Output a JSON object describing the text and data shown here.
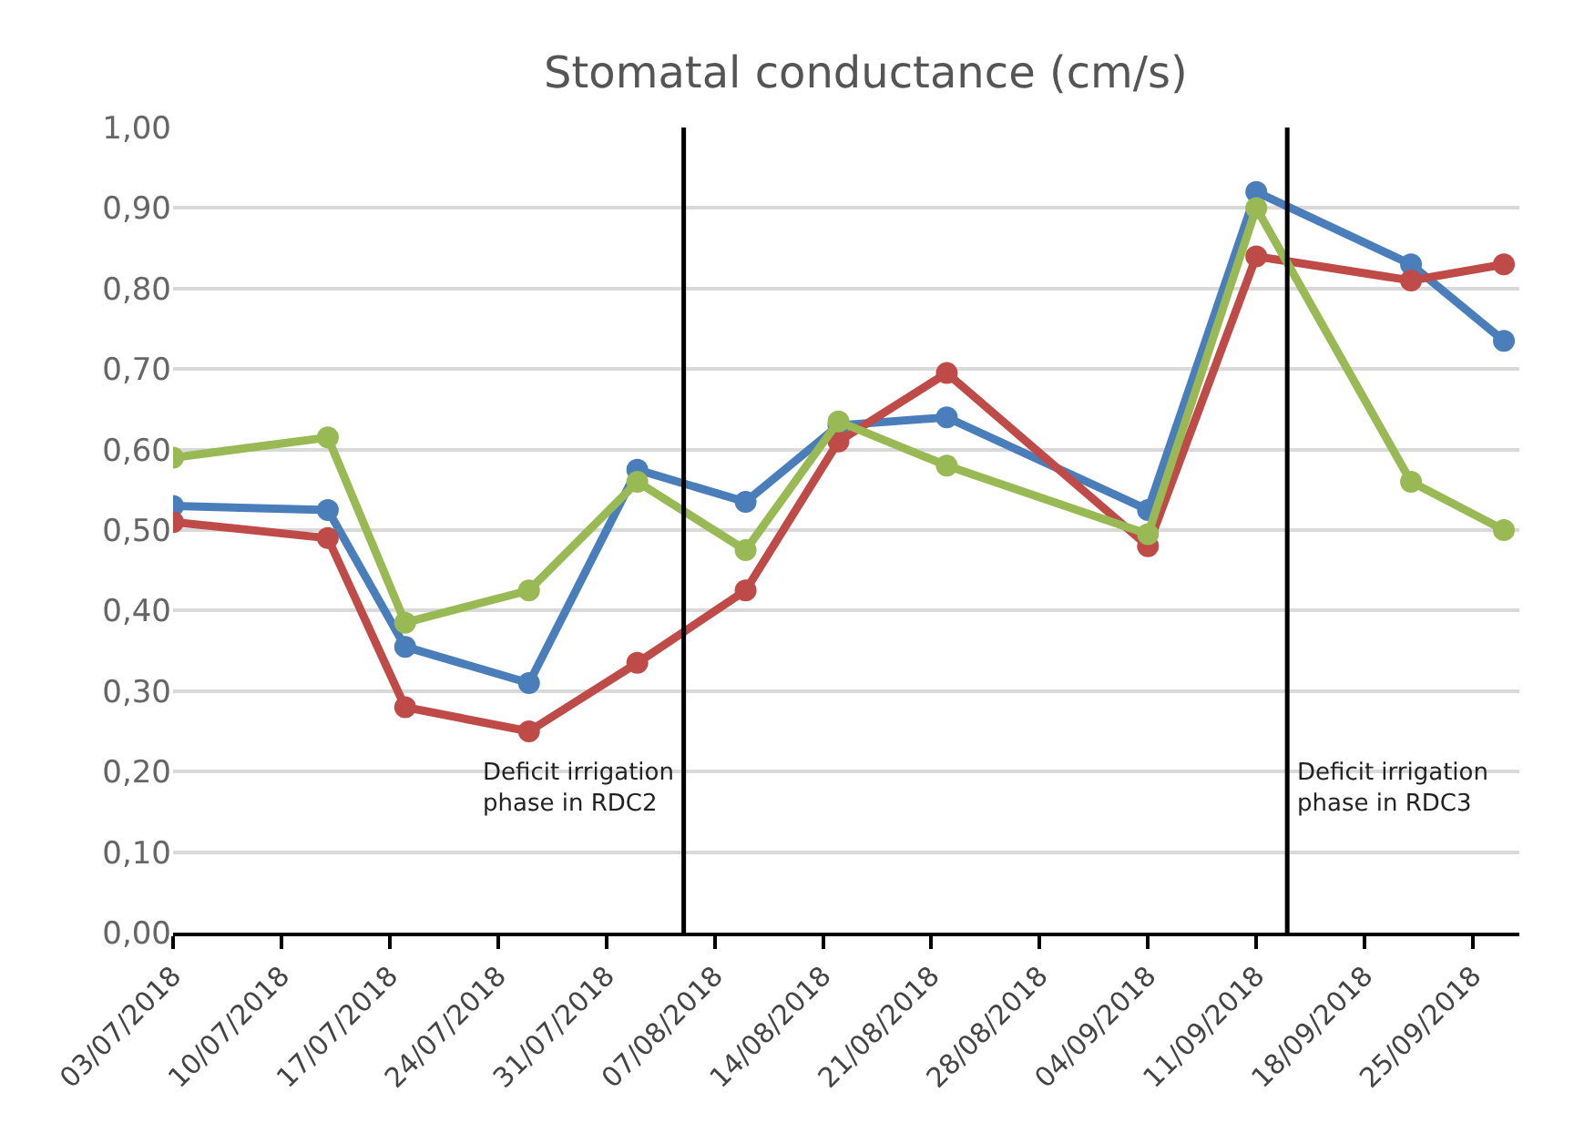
{
  "chart_data": {
    "type": "line",
    "title": "Stomatal conductance (cm/s)",
    "x": [
      "2018-07-03",
      "2018-07-13",
      "2018-07-18",
      "2018-07-26",
      "2018-08-02",
      "2018-08-09",
      "2018-08-15",
      "2018-08-22",
      "2018-09-04",
      "2018-09-11",
      "2018-09-21",
      "2018-09-27"
    ],
    "series": [
      {
        "color": "#4a7ebb",
        "values": [
          0.53,
          0.525,
          0.355,
          0.31,
          0.575,
          0.535,
          0.63,
          0.64,
          0.525,
          0.92,
          0.83,
          0.735
        ]
      },
      {
        "color": "#be4b48",
        "values": [
          0.51,
          0.49,
          0.28,
          0.25,
          0.335,
          0.425,
          0.61,
          0.695,
          0.48,
          0.84,
          0.81,
          0.83
        ]
      },
      {
        "color": "#98b954",
        "values": [
          0.59,
          0.615,
          0.385,
          0.425,
          0.56,
          0.475,
          0.635,
          0.58,
          0.495,
          0.9,
          0.56,
          0.5
        ]
      }
    ],
    "xlim": [
      "2018-07-03",
      "2018-09-28"
    ],
    "xticks": [
      {
        "value": "2018-07-03",
        "label": "03/07/2018"
      },
      {
        "value": "2018-07-10",
        "label": "10/07/2018"
      },
      {
        "value": "2018-07-17",
        "label": "17/07/2018"
      },
      {
        "value": "2018-07-24",
        "label": "24/07/2018"
      },
      {
        "value": "2018-07-31",
        "label": "31/07/2018"
      },
      {
        "value": "2018-08-07",
        "label": "07/08/2018"
      },
      {
        "value": "2018-08-14",
        "label": "14/08/2018"
      },
      {
        "value": "2018-08-21",
        "label": "21/08/2018"
      },
      {
        "value": "2018-08-28",
        "label": "28/08/2018"
      },
      {
        "value": "2018-09-04",
        "label": "04/09/2018"
      },
      {
        "value": "2018-09-11",
        "label": "11/09/2018"
      },
      {
        "value": "2018-09-18",
        "label": "18/09/2018"
      },
      {
        "value": "2018-09-25",
        "label": "25/09/2018"
      }
    ],
    "ylim": [
      0,
      1
    ],
    "yticks": [
      {
        "value": 0,
        "label": "0,00"
      },
      {
        "value": 0.1,
        "label": "0,10"
      },
      {
        "value": 0.2,
        "label": "0,20"
      },
      {
        "value": 0.3,
        "label": "0,30"
      },
      {
        "value": 0.4,
        "label": "0,40"
      },
      {
        "value": 0.5,
        "label": "0,50"
      },
      {
        "value": 0.6,
        "label": "0,60"
      },
      {
        "value": 0.7,
        "label": "0,70"
      },
      {
        "value": 0.8,
        "label": "0,80"
      },
      {
        "value": 0.9,
        "label": "0,90"
      },
      {
        "value": 1,
        "label": "1,00"
      }
    ],
    "ref_lines": [
      {
        "axis": "x",
        "value": "2018-08-05",
        "color": "#000000",
        "label": "Deficit irrigation\nphase in RDC2"
      },
      {
        "axis": "x",
        "value": "2018-09-13",
        "color": "#000000",
        "label": "Deficit irrigation\nphase in RDC3"
      }
    ],
    "grid": "y",
    "marker": "circle",
    "line_style": "solid"
  }
}
